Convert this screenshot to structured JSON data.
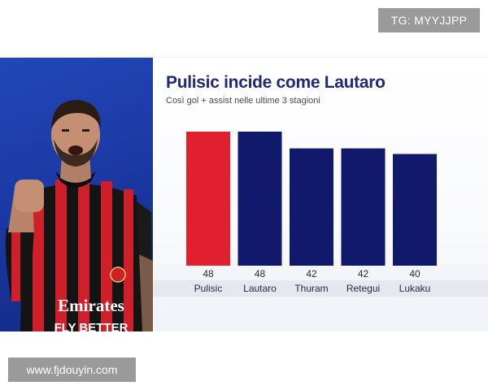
{
  "watermarks": {
    "top": "TG: MYYJJPP",
    "bottom": "www.fjdouyin.com"
  },
  "photo": {
    "shirt_sponsor_line1": "Emirates",
    "shirt_sponsor_line2": "FLY BETTER"
  },
  "chart_data": {
    "type": "bar",
    "title": "Pulisic incide come Lautaro",
    "subtitle": "Così gol + assist nelle ultime 3 stagioni",
    "categories": [
      "Pulisic",
      "Lautaro",
      "Thuram",
      "Retegui",
      "Lukaku"
    ],
    "values": [
      48,
      48,
      42,
      42,
      40
    ],
    "colors": [
      "#e0202e",
      "#10196b",
      "#10196b",
      "#10196b",
      "#10196b"
    ],
    "ylim": [
      0,
      48
    ],
    "grid": false,
    "legend": "none",
    "data_labels": "below-bars"
  }
}
